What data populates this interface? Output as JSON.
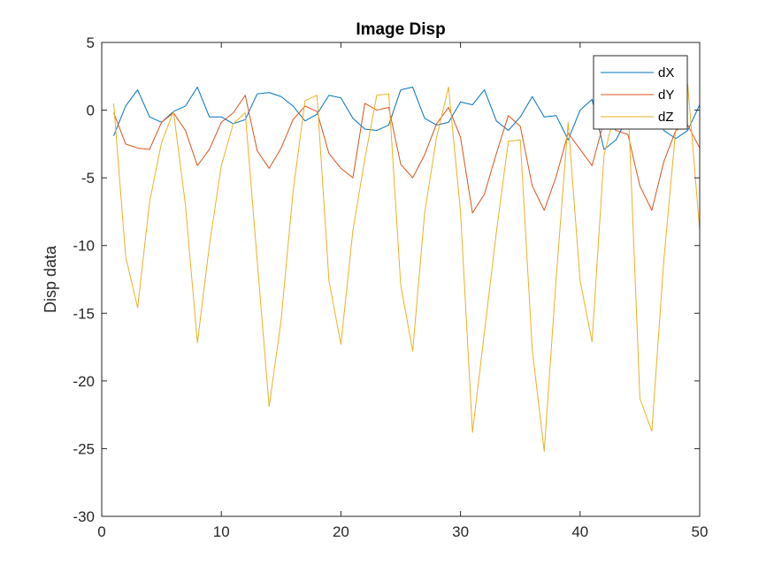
{
  "chart_data": {
    "type": "line",
    "title": "Image Disp",
    "xlabel": "",
    "ylabel": "Disp data",
    "xlim": [
      0,
      50
    ],
    "ylim": [
      -30,
      5
    ],
    "xticks": [
      0,
      10,
      20,
      30,
      40,
      50
    ],
    "yticks": [
      5,
      0,
      -5,
      -10,
      -15,
      -20,
      -25,
      -30
    ],
    "grid": false,
    "legend_position": "top-right",
    "x": [
      1,
      2,
      3,
      4,
      5,
      6,
      7,
      8,
      9,
      10,
      11,
      12,
      13,
      14,
      15,
      16,
      17,
      18,
      19,
      20,
      21,
      22,
      23,
      24,
      25,
      26,
      27,
      28,
      29,
      30,
      31,
      32,
      33,
      34,
      35,
      36,
      37,
      38,
      39,
      40,
      41,
      42,
      43,
      44,
      45,
      46,
      47,
      48,
      49,
      50
    ],
    "series": [
      {
        "name": "dX",
        "color": "#0072BD",
        "values": [
          -1.9,
          0.3,
          1.5,
          -0.5,
          -0.9,
          -0.1,
          0.3,
          1.7,
          -0.5,
          -0.5,
          -1.0,
          -0.7,
          1.2,
          1.3,
          1.0,
          0.3,
          -0.8,
          -0.3,
          1.1,
          0.9,
          -0.6,
          -1.4,
          -1.5,
          -1.1,
          1.5,
          1.7,
          -0.6,
          -1.1,
          -0.9,
          0.6,
          0.4,
          1.5,
          -0.8,
          -1.5,
          -0.5,
          1.0,
          -0.5,
          -0.4,
          -2.2,
          0.0,
          0.8,
          -2.9,
          -2.2,
          -0.5,
          0.9,
          0.4,
          -1.5,
          -2.1,
          -1.5,
          0.4
        ]
      },
      {
        "name": "dY",
        "color": "#D95319",
        "values": [
          -0.2,
          -2.5,
          -2.8,
          -2.9,
          -0.9,
          -0.2,
          -1.5,
          -4.1,
          -2.9,
          -0.9,
          -0.2,
          1.1,
          -3.0,
          -4.3,
          -2.8,
          -0.7,
          0.3,
          -0.1,
          -3.2,
          -4.3,
          -5.0,
          0.5,
          0.0,
          0.2,
          -4.0,
          -5.0,
          -3.3,
          -1.0,
          0.2,
          -2.0,
          -7.6,
          -6.2,
          -3.2,
          -0.4,
          -1.2,
          -5.6,
          -7.4,
          -4.9,
          -1.7,
          -2.9,
          -4.1,
          -0.8,
          -1.5,
          -1.8,
          -5.6,
          -7.4,
          -3.8,
          -1.5,
          -1.1,
          -2.8
        ]
      },
      {
        "name": "dZ",
        "color": "#EDB120",
        "values": [
          0.5,
          -10.8,
          -14.6,
          -6.8,
          -2.4,
          -0.1,
          -7.0,
          -17.2,
          -10.0,
          -4.1,
          -1.0,
          -0.2,
          -11.1,
          -21.9,
          -15.5,
          -6.0,
          0.7,
          1.1,
          -12.6,
          -17.3,
          -8.9,
          -3.6,
          1.1,
          1.2,
          -12.9,
          -17.8,
          -7.6,
          -2.0,
          1.7,
          -7.5,
          -23.8,
          -16.4,
          -9.0,
          -2.3,
          -2.2,
          -17.7,
          -25.2,
          -12.4,
          -0.9,
          -12.6,
          -17.1,
          -3.3,
          0.1,
          0.9,
          -21.3,
          -23.7,
          -11.1,
          -1.4,
          1.9,
          -8.9
        ]
      }
    ]
  }
}
